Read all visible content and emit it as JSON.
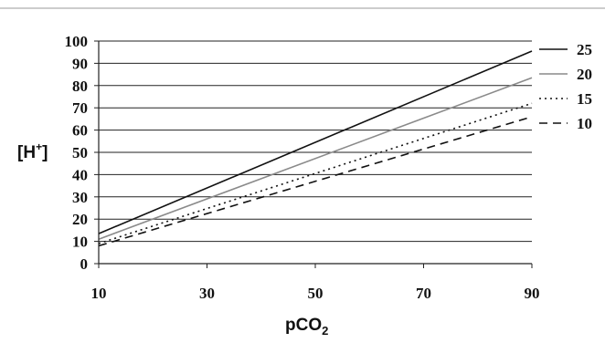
{
  "chart_data": {
    "type": "line",
    "title": "",
    "xlabel": "pCO",
    "xlabel_sub": "2",
    "ylabel": "[H",
    "ylabel_sup": "+",
    "ylabel_end": "]",
    "xlim": [
      10,
      90
    ],
    "ylim": [
      0,
      100
    ],
    "x_ticks": [
      10,
      30,
      50,
      70,
      90
    ],
    "y_ticks": [
      0,
      10,
      20,
      30,
      40,
      50,
      60,
      70,
      80,
      90,
      100
    ],
    "grid": "horizontal",
    "legend_position": "right",
    "series": [
      {
        "name": "25",
        "style": "solid",
        "color": "#111111",
        "x": [
          10,
          90
        ],
        "y": [
          13.5,
          95.5
        ]
      },
      {
        "name": "20",
        "style": "solid",
        "color": "#8a8a8a",
        "x": [
          10,
          90
        ],
        "y": [
          11,
          83.5
        ]
      },
      {
        "name": "15",
        "style": "dotted",
        "color": "#111111",
        "x": [
          10,
          90
        ],
        "y": [
          9,
          72
        ]
      },
      {
        "name": "10",
        "style": "dashed",
        "color": "#111111",
        "x": [
          10,
          90
        ],
        "y": [
          8,
          66
        ]
      }
    ]
  }
}
